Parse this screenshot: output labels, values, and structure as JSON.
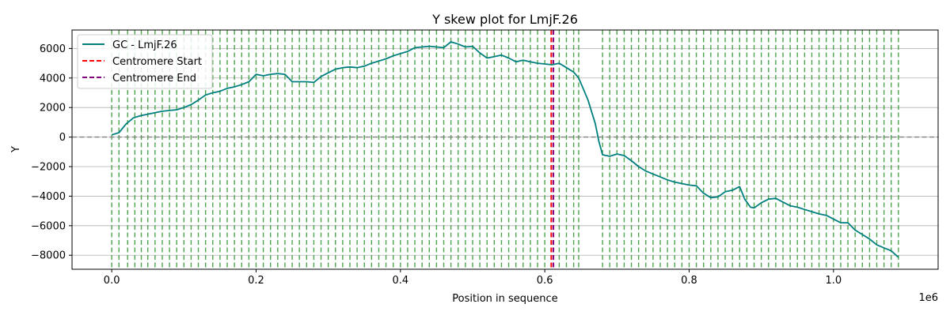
{
  "chart_data": {
    "type": "line",
    "title": "Y skew plot for LmjF.26",
    "xlabel": "Position in sequence",
    "ylabel": "Y",
    "x_offset_label": "1e6",
    "xlim": [
      -55000,
      1145000
    ],
    "ylim": [
      -8950,
      7250
    ],
    "x_ticks": [
      {
        "value": 0,
        "label": "0.0"
      },
      {
        "value": 200000,
        "label": "0.2"
      },
      {
        "value": 400000,
        "label": "0.4"
      },
      {
        "value": 600000,
        "label": "0.6"
      },
      {
        "value": 800000,
        "label": "0.8"
      },
      {
        "value": 1000000,
        "label": "1.0"
      }
    ],
    "y_ticks": [
      {
        "value": -8000,
        "label": "−8000"
      },
      {
        "value": -6000,
        "label": "−6000"
      },
      {
        "value": -4000,
        "label": "−4000"
      },
      {
        "value": -2000,
        "label": "−2000"
      },
      {
        "value": 0,
        "label": "0"
      },
      {
        "value": 2000,
        "label": "2000"
      },
      {
        "value": 4000,
        "label": "4000"
      },
      {
        "value": 6000,
        "label": "6000"
      }
    ],
    "grid": "horizontal",
    "legend_position": "top-left",
    "zero_line": {
      "value": 0,
      "color": "#808080",
      "style": "dashed"
    },
    "series": [
      {
        "name": "GC - LmjF.26",
        "color": "#007f7f",
        "x": [
          0,
          10000,
          20000,
          30000,
          40000,
          50000,
          60000,
          70000,
          80000,
          90000,
          100000,
          110000,
          120000,
          130000,
          140000,
          150000,
          160000,
          170000,
          180000,
          190000,
          200000,
          210000,
          220000,
          230000,
          240000,
          250000,
          260000,
          270000,
          280000,
          290000,
          300000,
          310000,
          320000,
          330000,
          340000,
          350000,
          360000,
          370000,
          380000,
          390000,
          400000,
          410000,
          420000,
          430000,
          440000,
          450000,
          460000,
          470000,
          480000,
          490000,
          500000,
          510000,
          520000,
          530000,
          540000,
          550000,
          560000,
          570000,
          580000,
          590000,
          600000,
          610000,
          620000,
          630000,
          640000,
          647000,
          660000,
          670000,
          675000,
          680000,
          690000,
          700000,
          710000,
          720000,
          730000,
          740000,
          750000,
          760000,
          770000,
          780000,
          790000,
          800000,
          810000,
          820000,
          830000,
          840000,
          850000,
          860000,
          870000,
          877000,
          885000,
          890000,
          900000,
          910000,
          920000,
          930000,
          940000,
          950000,
          960000,
          970000,
          980000,
          990000,
          1000000,
          1010000,
          1020000,
          1030000,
          1040000,
          1050000,
          1060000,
          1070000,
          1080000,
          1090000
        ],
        "y": [
          150,
          300,
          900,
          1300,
          1450,
          1550,
          1650,
          1750,
          1800,
          1850,
          2000,
          2200,
          2500,
          2850,
          3000,
          3100,
          3300,
          3400,
          3550,
          3750,
          4250,
          4150,
          4250,
          4300,
          4250,
          3750,
          3750,
          3750,
          3700,
          4100,
          4350,
          4600,
          4700,
          4750,
          4700,
          4800,
          5000,
          5150,
          5300,
          5500,
          5650,
          5800,
          6050,
          6100,
          6150,
          6100,
          6050,
          6450,
          6300,
          6100,
          6150,
          5700,
          5350,
          5450,
          5550,
          5350,
          5100,
          5200,
          5100,
          5000,
          4950,
          4900,
          5000,
          4700,
          4400,
          4000,
          2500,
          900,
          -300,
          -1200,
          -1300,
          -1150,
          -1250,
          -1600,
          -2000,
          -2300,
          -2500,
          -2700,
          -2900,
          -3050,
          -3150,
          -3250,
          -3300,
          -3800,
          -4100,
          -4050,
          -3700,
          -3600,
          -3350,
          -4200,
          -4750,
          -4800,
          -4450,
          -4200,
          -4150,
          -4400,
          -4650,
          -4750,
          -4900,
          -5050,
          -5200,
          -5300,
          -5550,
          -5800,
          -5800,
          -6300,
          -6600,
          -6900,
          -7300,
          -7500,
          -7700,
          -8150
        ]
      },
      {
        "name": "Centromere Start",
        "color": "#ff0000",
        "style": "dashed",
        "x_value": 609000
      },
      {
        "name": "Centromere End",
        "color": "#800080",
        "style": "dashed",
        "x_value": 612000
      }
    ],
    "green_marker_color": "#3a9a3a",
    "green_markers_x": [
      0,
      10000,
      22000,
      32000,
      41000,
      50000,
      60000,
      70000,
      80000,
      90000,
      100000,
      110000,
      120000,
      130000,
      140000,
      150000,
      160000,
      170000,
      180000,
      190000,
      200000,
      210000,
      220000,
      230000,
      240000,
      250000,
      260000,
      270000,
      280000,
      290000,
      300000,
      310000,
      320000,
      330000,
      340000,
      350000,
      360000,
      370000,
      380000,
      390000,
      400000,
      410000,
      420000,
      430000,
      440000,
      450000,
      460000,
      470000,
      480000,
      490000,
      500000,
      510000,
      520000,
      530000,
      540000,
      550000,
      560000,
      570000,
      580000,
      590000,
      600000,
      620000,
      630000,
      640000,
      647000,
      680000,
      690000,
      700000,
      710000,
      720000,
      730000,
      740000,
      750000,
      760000,
      770000,
      780000,
      790000,
      800000,
      810000,
      820000,
      830000,
      840000,
      850000,
      860000,
      870000,
      880000,
      890000,
      900000,
      910000,
      920000,
      930000,
      940000,
      950000,
      960000,
      970000,
      980000,
      990000,
      1000000,
      1010000,
      1020000,
      1030000,
      1040000,
      1050000,
      1060000,
      1070000,
      1080000,
      1090000
    ]
  }
}
